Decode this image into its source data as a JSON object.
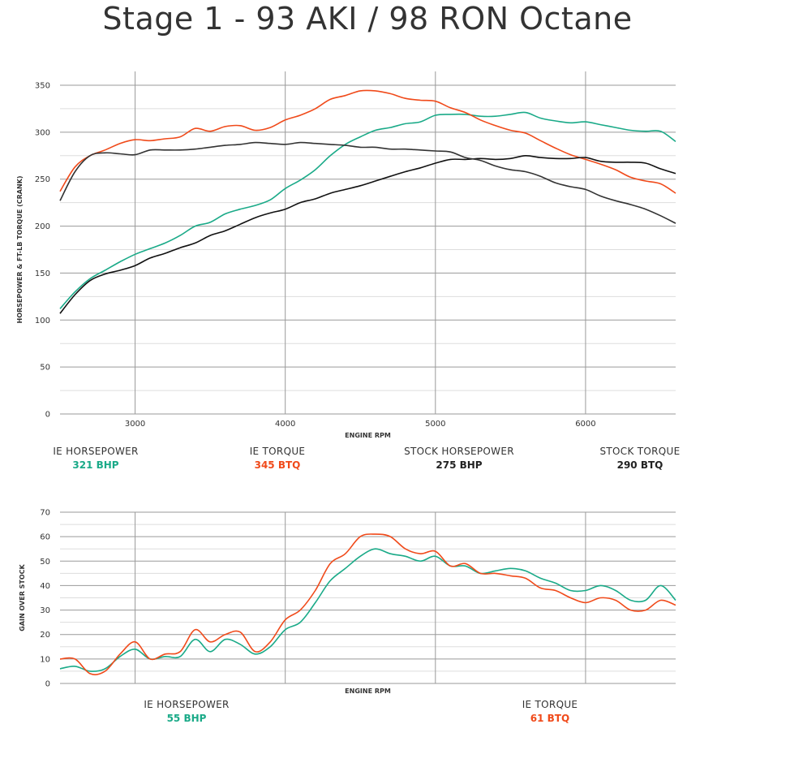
{
  "title": "Stage 1 - 93 AKI / 98 RON Octane",
  "colors": {
    "ie_hp": "#1aaa88",
    "ie_tq": "#f04a1a",
    "stock_hp": "#111111",
    "stock_tq": "#333333",
    "grid": "#aaaaaa"
  },
  "chart_data": [
    {
      "type": "line",
      "xlabel": "ENGINE RPM",
      "ylabel": "HORSEPOWER & FT-LB TORQUE (CRANK)",
      "xlim": [
        2500,
        6600
      ],
      "ylim": [
        0,
        350
      ],
      "x_ticks": [
        3000,
        4000,
        5000,
        6000
      ],
      "y_ticks": [
        0,
        50,
        100,
        150,
        200,
        250,
        300,
        350
      ],
      "grid": true,
      "series": [
        {
          "name": "IE HORSEPOWER",
          "color": "#1aaa88",
          "x": [
            2500,
            2600,
            2700,
            2800,
            2900,
            3000,
            3100,
            3200,
            3300,
            3400,
            3500,
            3600,
            3700,
            3800,
            3900,
            4000,
            4100,
            4200,
            4300,
            4400,
            4500,
            4600,
            4700,
            4800,
            4900,
            5000,
            5100,
            5200,
            5300,
            5400,
            5500,
            5600,
            5700,
            5800,
            5900,
            6000,
            6100,
            6200,
            6300,
            6400,
            6500,
            6600
          ],
          "y": [
            112,
            130,
            144,
            153,
            162,
            170,
            176,
            182,
            190,
            200,
            204,
            213,
            218,
            222,
            228,
            240,
            249,
            260,
            275,
            287,
            295,
            302,
            305,
            309,
            311,
            318,
            319,
            319,
            317,
            317,
            319,
            321,
            315,
            312,
            310,
            311,
            308,
            305,
            302,
            301,
            301,
            290
          ]
        },
        {
          "name": "IE TORQUE",
          "color": "#f04a1a",
          "x": [
            2500,
            2600,
            2700,
            2800,
            2900,
            3000,
            3100,
            3200,
            3300,
            3400,
            3500,
            3600,
            3700,
            3800,
            3900,
            4000,
            4100,
            4200,
            4300,
            4400,
            4500,
            4600,
            4700,
            4800,
            4900,
            5000,
            5100,
            5200,
            5300,
            5400,
            5500,
            5600,
            5700,
            5800,
            5900,
            6000,
            6100,
            6200,
            6300,
            6400,
            6500,
            6600
          ],
          "y": [
            237,
            263,
            275,
            281,
            288,
            292,
            291,
            293,
            295,
            304,
            301,
            306,
            307,
            302,
            305,
            313,
            318,
            325,
            335,
            339,
            344,
            344,
            341,
            336,
            334,
            333,
            326,
            321,
            313,
            307,
            302,
            299,
            291,
            283,
            276,
            271,
            266,
            260,
            252,
            248,
            245,
            235
          ]
        },
        {
          "name": "STOCK HORSEPOWER",
          "color": "#111111",
          "x": [
            2500,
            2600,
            2700,
            2800,
            2900,
            3000,
            3100,
            3200,
            3300,
            3400,
            3500,
            3600,
            3700,
            3800,
            3900,
            4000,
            4100,
            4200,
            4300,
            4400,
            4500,
            4600,
            4700,
            4800,
            4900,
            5000,
            5100,
            5200,
            5300,
            5400,
            5500,
            5600,
            5700,
            5800,
            5900,
            6000,
            6100,
            6200,
            6300,
            6400,
            6500,
            6600
          ],
          "y": [
            107,
            127,
            142,
            149,
            153,
            158,
            166,
            171,
            177,
            182,
            190,
            195,
            202,
            209,
            214,
            218,
            225,
            229,
            235,
            239,
            243,
            248,
            253,
            258,
            262,
            267,
            271,
            271,
            272,
            271,
            272,
            275,
            273,
            272,
            272,
            273,
            269,
            268,
            268,
            267,
            261,
            256
          ]
        },
        {
          "name": "STOCK TORQUE",
          "color": "#333333",
          "x": [
            2500,
            2600,
            2700,
            2800,
            2900,
            3000,
            3100,
            3200,
            3300,
            3400,
            3500,
            3600,
            3700,
            3800,
            3900,
            4000,
            4100,
            4200,
            4300,
            4400,
            4500,
            4600,
            4700,
            4800,
            4900,
            5000,
            5100,
            5200,
            5300,
            5400,
            5500,
            5600,
            5700,
            5800,
            5900,
            6000,
            6100,
            6200,
            6300,
            6400,
            6500,
            6600
          ],
          "y": [
            227,
            258,
            275,
            278,
            277,
            276,
            281,
            281,
            281,
            282,
            284,
            286,
            287,
            289,
            288,
            287,
            289,
            288,
            287,
            286,
            284,
            284,
            282,
            282,
            281,
            280,
            279,
            273,
            270,
            264,
            260,
            258,
            253,
            246,
            242,
            239,
            232,
            227,
            223,
            218,
            211,
            203
          ]
        }
      ]
    },
    {
      "type": "line",
      "xlabel": "ENGINE RPM",
      "ylabel": "GAIN OVER STOCK",
      "xlim": [
        2500,
        6600
      ],
      "ylim": [
        0,
        70
      ],
      "x_ticks": [
        3000,
        4000,
        5000,
        6000
      ],
      "y_ticks": [
        0,
        10,
        20,
        30,
        40,
        50,
        60,
        70
      ],
      "grid": true,
      "series": [
        {
          "name": "IE HORSEPOWER",
          "color": "#1aaa88",
          "x": [
            2500,
            2600,
            2700,
            2800,
            2900,
            3000,
            3100,
            3200,
            3300,
            3400,
            3500,
            3600,
            3700,
            3800,
            3900,
            4000,
            4100,
            4200,
            4300,
            4400,
            4500,
            4600,
            4700,
            4800,
            4900,
            5000,
            5100,
            5200,
            5300,
            5400,
            5500,
            5600,
            5700,
            5800,
            5900,
            6000,
            6100,
            6200,
            6300,
            6400,
            6500,
            6600
          ],
          "y": [
            6,
            7,
            5,
            6,
            11,
            14,
            10,
            11,
            11,
            18,
            13,
            18,
            16,
            12,
            15,
            22,
            25,
            33,
            42,
            47,
            52,
            55,
            53,
            52,
            50,
            52,
            48,
            48,
            45,
            46,
            47,
            46,
            43,
            41,
            38,
            38,
            40,
            38,
            34,
            34,
            40,
            34
          ]
        },
        {
          "name": "IE TORQUE",
          "color": "#f04a1a",
          "x": [
            2500,
            2600,
            2700,
            2800,
            2900,
            3000,
            3100,
            3200,
            3300,
            3400,
            3500,
            3600,
            3700,
            3800,
            3900,
            4000,
            4100,
            4200,
            4300,
            4400,
            4500,
            4600,
            4700,
            4800,
            4900,
            5000,
            5100,
            5200,
            5300,
            5400,
            5500,
            5600,
            5700,
            5800,
            5900,
            6000,
            6100,
            6200,
            6300,
            6400,
            6500,
            6600
          ],
          "y": [
            10,
            10,
            4,
            5,
            12,
            17,
            10,
            12,
            13,
            22,
            17,
            20,
            21,
            13,
            17,
            26,
            30,
            38,
            49,
            53,
            60,
            61,
            60,
            55,
            53,
            54,
            48,
            49,
            45,
            45,
            44,
            43,
            39,
            38,
            35,
            33,
            35,
            34,
            30,
            30,
            34,
            32
          ]
        }
      ]
    }
  ],
  "legend_top": [
    {
      "name": "IE HORSEPOWER",
      "value": "321 BHP",
      "color": "#1aaa88"
    },
    {
      "name": "IE TORQUE",
      "value": "345 BTQ",
      "color": "#f04a1a"
    },
    {
      "name": "STOCK HORSEPOWER",
      "value": "275 BHP",
      "color": "#222222"
    },
    {
      "name": "STOCK TORQUE",
      "value": "290 BTQ",
      "color": "#222222"
    }
  ],
  "legend_bottom": [
    {
      "name": "IE HORSEPOWER",
      "value": "55 BHP",
      "color": "#1aaa88"
    },
    {
      "name": "IE TORQUE",
      "value": "61 BTQ",
      "color": "#f04a1a"
    }
  ]
}
